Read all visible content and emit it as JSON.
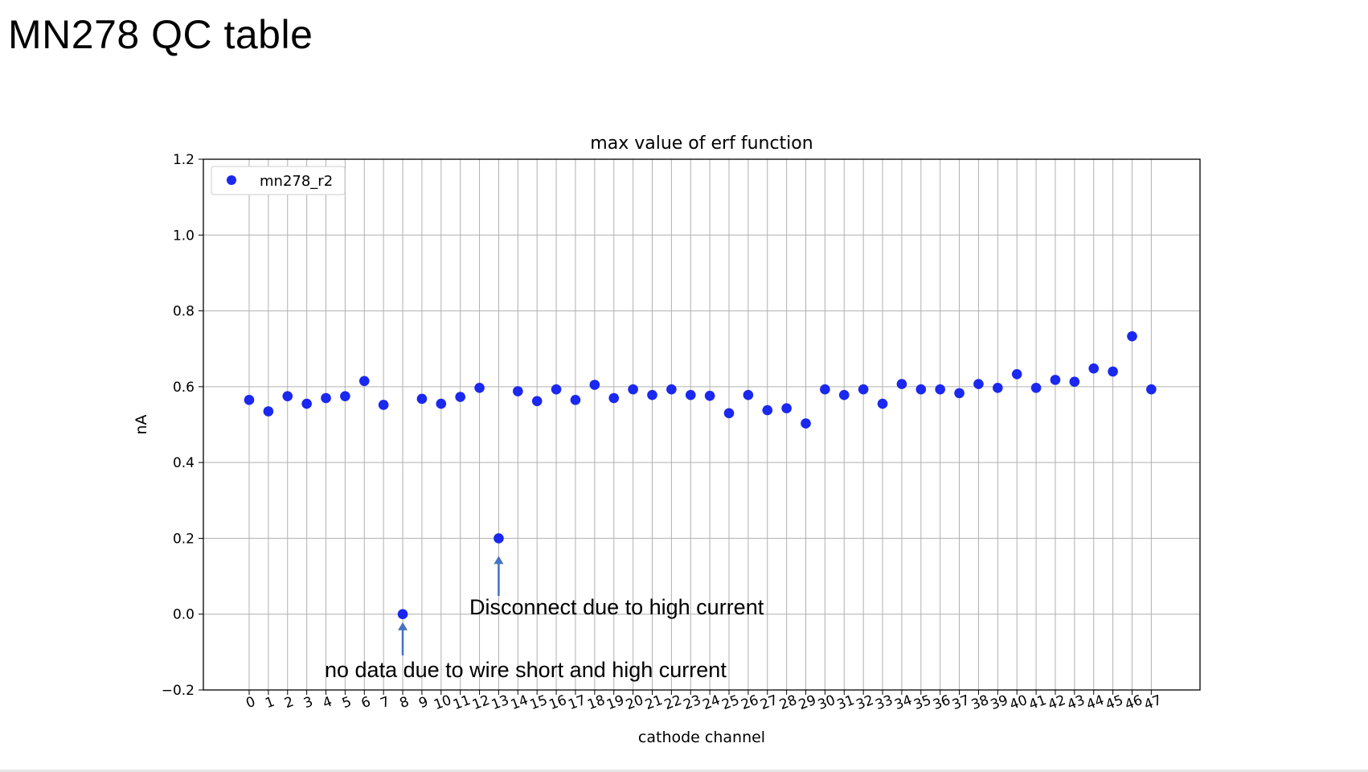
{
  "slide": {
    "title": "MN278 QC table"
  },
  "chart_data": {
    "type": "scatter",
    "title": "max value of erf function",
    "xlabel": "cathode channel",
    "ylabel": "nA",
    "ylim": [
      -0.2,
      1.2
    ],
    "yticks": [
      -0.2,
      0.0,
      0.2,
      0.4,
      0.6,
      0.8,
      1.0,
      1.2
    ],
    "ytick_labels": [
      "−0.2",
      "0.0",
      "0.2",
      "0.4",
      "0.6",
      "0.8",
      "1.0",
      "1.2"
    ],
    "xticks": [
      0,
      1,
      2,
      3,
      4,
      5,
      6,
      7,
      8,
      9,
      10,
      11,
      12,
      13,
      14,
      15,
      16,
      17,
      18,
      19,
      20,
      21,
      22,
      23,
      24,
      25,
      26,
      27,
      28,
      29,
      30,
      31,
      32,
      33,
      34,
      35,
      36,
      37,
      38,
      39,
      40,
      41,
      42,
      43,
      44,
      45,
      46,
      47
    ],
    "xtick_labels": [
      "0",
      "1",
      "2",
      "3",
      "4",
      "5",
      "6",
      "7",
      "8",
      "9",
      "10",
      "11",
      "12",
      "13",
      "14",
      "15",
      "16",
      "17",
      "18",
      "19",
      "20",
      "21",
      "22",
      "23",
      "24",
      "25",
      "26",
      "27",
      "28",
      "29",
      "30",
      "31",
      "32",
      "33",
      "34",
      "35",
      "36",
      "37",
      "38",
      "39",
      "40",
      "41",
      "42",
      "43",
      "44",
      "45",
      "46",
      "47"
    ],
    "grid": true,
    "legend_position": "top-left",
    "series": [
      {
        "name": "mn278_r2",
        "color": "#1a28f0",
        "x": [
          0,
          1,
          2,
          3,
          4,
          5,
          6,
          7,
          8,
          9,
          10,
          11,
          12,
          13,
          14,
          15,
          16,
          17,
          18,
          19,
          20,
          21,
          22,
          23,
          24,
          25,
          26,
          27,
          28,
          29,
          30,
          31,
          32,
          33,
          34,
          35,
          36,
          37,
          38,
          39,
          40,
          41,
          42,
          43,
          44,
          45,
          46,
          47
        ],
        "y": [
          0.565,
          0.535,
          0.575,
          0.555,
          0.57,
          0.575,
          0.615,
          0.552,
          0.0,
          0.568,
          0.555,
          0.573,
          0.597,
          0.2,
          0.588,
          0.562,
          0.593,
          0.565,
          0.605,
          0.57,
          0.593,
          0.578,
          0.593,
          0.578,
          0.576,
          0.53,
          0.578,
          0.538,
          0.543,
          0.503,
          0.593,
          0.578,
          0.593,
          0.555,
          0.607,
          0.593,
          0.593,
          0.583,
          0.607,
          0.597,
          0.633,
          0.597,
          0.618,
          0.613,
          0.648,
          0.64,
          0.733,
          0.593
        ]
      }
    ],
    "annotations": [
      {
        "text": "no data due to wire short and high current",
        "x": 8,
        "y": 0.0,
        "arrow_color": "#4472c4"
      },
      {
        "text": "Disconnect due to high current",
        "x": 13,
        "y": 0.2,
        "arrow_color": "#4472c4"
      }
    ]
  }
}
